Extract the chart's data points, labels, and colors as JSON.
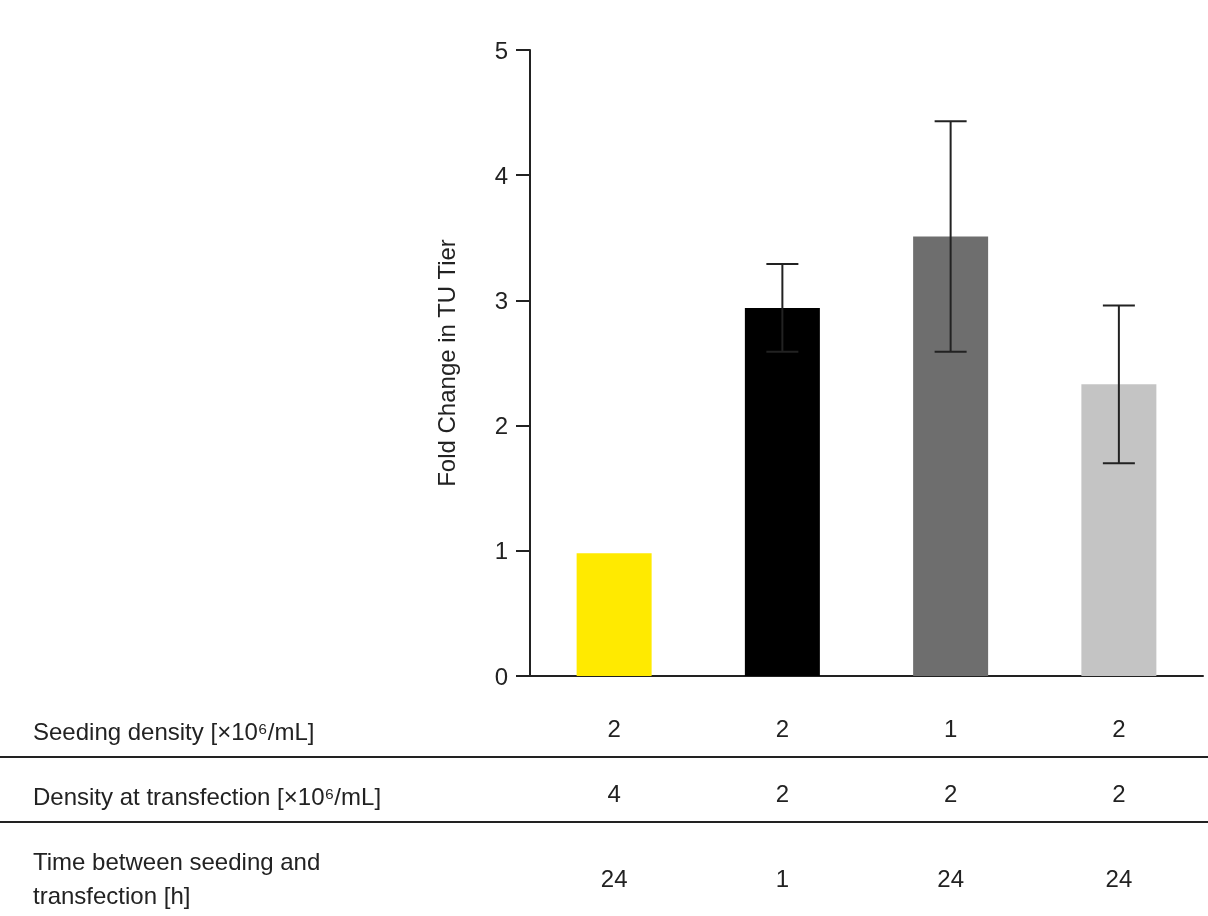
{
  "chart_data": {
    "type": "bar",
    "ylabel": "Fold Change in TU Tier",
    "categories": [
      "2\n4\n24",
      "2\n2\n1",
      "1\n2\n24",
      "2\n2\n24"
    ],
    "values": [
      0.98,
      2.94,
      3.51,
      2.33
    ],
    "colors": [
      "#ffea00",
      "#000000",
      "#6e6e6e",
      "#c4c4c4"
    ],
    "errors": [
      null,
      0.35,
      0.92,
      0.63
    ],
    "ylim": [
      0,
      5
    ],
    "yticks": [
      0,
      1,
      2,
      3,
      4,
      5
    ],
    "grid": false,
    "annotations": [
      "Seeding density [×10⁶/mL]",
      "Density at transfection [×10⁶/mL]",
      "Time between seeding and transfection [h]"
    ]
  }
}
